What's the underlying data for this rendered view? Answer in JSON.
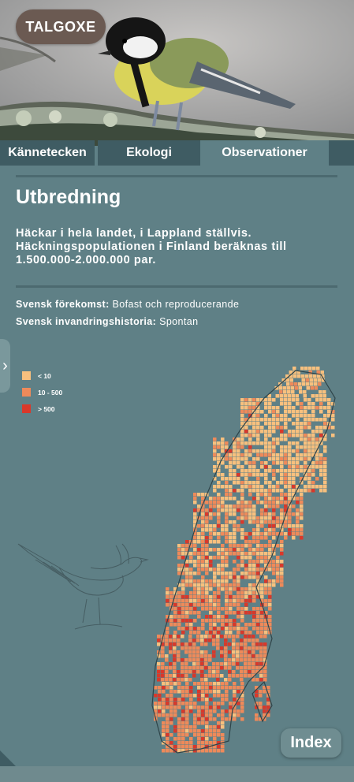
{
  "header": {
    "title": "TALGOXE"
  },
  "tabs": [
    {
      "label": "Kännetecken",
      "active": false
    },
    {
      "label": "Ekologi",
      "active": false
    },
    {
      "label": "Observationer",
      "active": true
    }
  ],
  "section": {
    "heading": "Utbredning",
    "lead": "Häckar i hela landet, i Lappland ställvis. Häckningspopulationen i Finland beräknas till 1.500.000-2.000.000 par.",
    "info": [
      {
        "label": "Svensk förekomst:",
        "value": "Bofast och reproducerande"
      },
      {
        "label": "Svensk invandringshistoria:",
        "value": "Spontan"
      }
    ]
  },
  "legend": [
    {
      "label": "< 10",
      "color": "#f7c07e"
    },
    {
      "label": "10 - 500",
      "color": "#ee8a5a"
    },
    {
      "label": "> 500",
      "color": "#d9382a"
    }
  ],
  "buttons": {
    "index_label": "Index",
    "side_arrow": "›"
  },
  "icons": {
    "side_arrow": "chevron-right-icon"
  }
}
